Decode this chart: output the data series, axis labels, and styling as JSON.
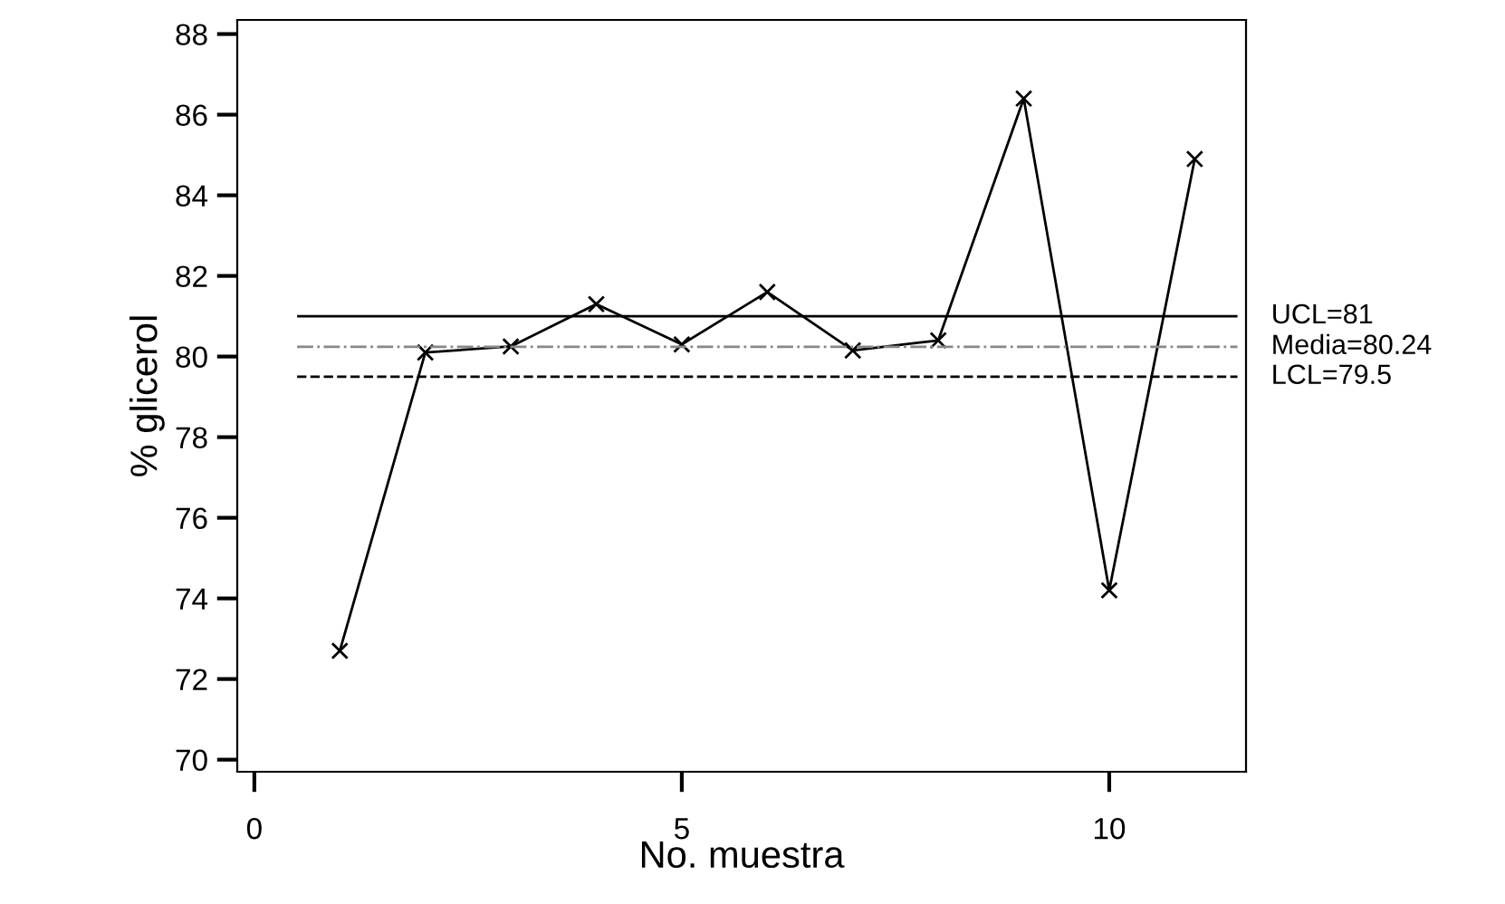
{
  "chart_data": {
    "type": "line",
    "xlabel": "No. muestra",
    "ylabel": "% glicerol",
    "x": [
      1,
      2,
      3,
      4,
      5,
      6,
      7,
      8,
      9,
      10,
      11
    ],
    "series": [
      {
        "color": "#000000",
        "values": [
          72.7,
          80.1,
          80.25,
          81.3,
          80.3,
          81.6,
          80.15,
          80.4,
          86.4,
          74.2,
          84.9
        ]
      }
    ],
    "xlim": [
      -0.2,
      11.6
    ],
    "xticks": [
      0,
      5,
      10
    ],
    "ylim": [
      69.7,
      88.35
    ],
    "yticks": [
      70,
      72,
      74,
      76,
      78,
      80,
      82,
      84,
      86,
      88
    ],
    "ref_lines": [
      {
        "axis": "y",
        "value": 81,
        "label": "UCL=81",
        "color": "#000000",
        "line_style": "solid"
      },
      {
        "axis": "y",
        "value": 80.24,
        "label": "Media=80.24",
        "color": "#888888",
        "line_style": "dashdot"
      },
      {
        "axis": "y",
        "value": 79.5,
        "label": "LCL=79.5",
        "color": "#000000",
        "line_style": "dashed"
      }
    ],
    "marker": "cross",
    "line_style": "solid",
    "grid": false,
    "legend": false
  }
}
